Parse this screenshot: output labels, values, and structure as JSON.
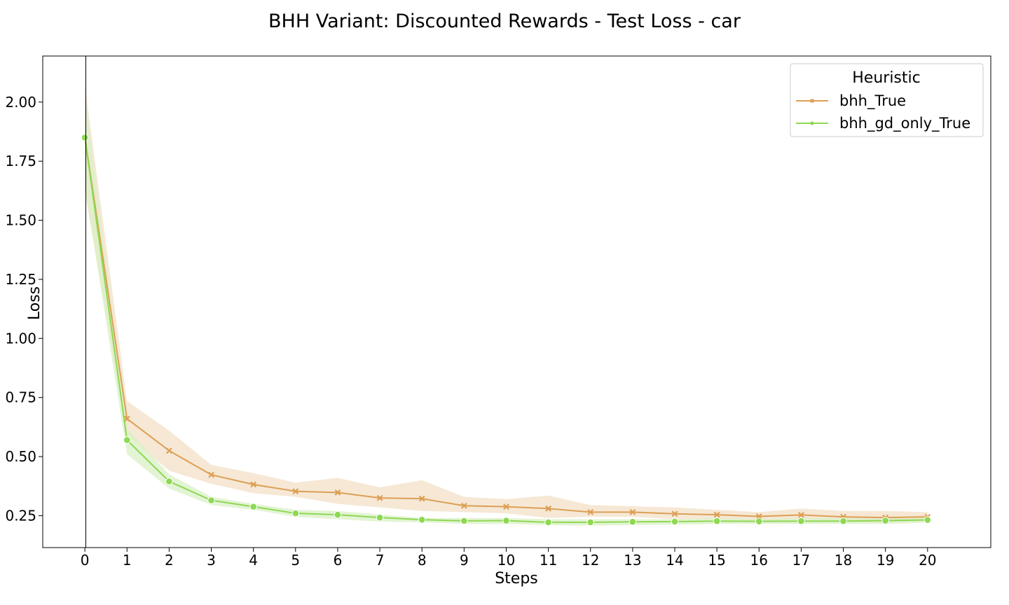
{
  "chart_data": {
    "type": "line",
    "title": "BHH Variant: Discounted Rewards - Test Loss - car",
    "xlabel": "Steps",
    "ylabel": "Loss",
    "x": [
      0,
      1,
      2,
      3,
      4,
      5,
      6,
      7,
      8,
      9,
      10,
      11,
      12,
      13,
      14,
      15,
      16,
      17,
      18,
      19,
      20
    ],
    "xlim": [
      -1,
      21.5
    ],
    "ylim": [
      0.115,
      2.195
    ],
    "yticks": [
      0.25,
      0.5,
      0.75,
      1.0,
      1.25,
      1.5,
      1.75,
      2.0
    ],
    "ytick_labels": [
      "0.25",
      "0.50",
      "0.75",
      "1.00",
      "1.25",
      "1.50",
      "1.75",
      "2.00"
    ],
    "xtick_labels": [
      "0",
      "1",
      "2",
      "3",
      "4",
      "5",
      "6",
      "7",
      "8",
      "9",
      "10",
      "11",
      "12",
      "13",
      "14",
      "15",
      "16",
      "17",
      "18",
      "19",
      "20"
    ],
    "grid": false,
    "legend": {
      "title": "Heuristic",
      "placement": "top-right"
    },
    "series": [
      {
        "name": "bhh_True",
        "color": "#dd9f55",
        "band_color": "#f4e2cb",
        "marker": "x",
        "values": [
          1.85,
          0.66,
          0.525,
          0.423,
          0.382,
          0.353,
          0.348,
          0.325,
          0.322,
          0.292,
          0.288,
          0.28,
          0.265,
          0.265,
          0.258,
          0.254,
          0.247,
          0.253,
          0.245,
          0.242,
          0.245
        ],
        "upper": [
          2.07,
          0.735,
          0.61,
          0.465,
          0.43,
          0.39,
          0.41,
          0.37,
          0.4,
          0.33,
          0.32,
          0.335,
          0.295,
          0.29,
          0.285,
          0.275,
          0.265,
          0.28,
          0.27,
          0.27,
          0.265
        ],
        "lower": [
          1.62,
          0.59,
          0.44,
          0.385,
          0.345,
          0.33,
          0.3,
          0.285,
          0.27,
          0.265,
          0.26,
          0.24,
          0.245,
          0.245,
          0.235,
          0.235,
          0.23,
          0.235,
          0.225,
          0.22,
          0.225
        ]
      },
      {
        "name": "bhh_gd_only_True",
        "color": "#8ed852",
        "band_color": "#d9f0c6",
        "marker": "o",
        "values": [
          1.85,
          0.57,
          0.395,
          0.315,
          0.288,
          0.26,
          0.254,
          0.242,
          0.233,
          0.228,
          0.229,
          0.222,
          0.222,
          0.224,
          0.225,
          0.227,
          0.226,
          0.227,
          0.227,
          0.229,
          0.232
        ],
        "upper": [
          2.03,
          0.62,
          0.425,
          0.33,
          0.3,
          0.275,
          0.27,
          0.255,
          0.24,
          0.24,
          0.24,
          0.235,
          0.235,
          0.235,
          0.235,
          0.24,
          0.235,
          0.24,
          0.24,
          0.24,
          0.245
        ],
        "lower": [
          1.64,
          0.51,
          0.365,
          0.295,
          0.275,
          0.245,
          0.235,
          0.225,
          0.222,
          0.215,
          0.215,
          0.21,
          0.208,
          0.21,
          0.212,
          0.215,
          0.215,
          0.215,
          0.215,
          0.215,
          0.22
        ]
      }
    ]
  }
}
